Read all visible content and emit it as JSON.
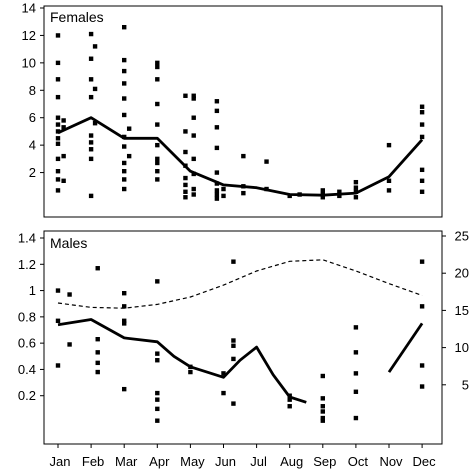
{
  "chart_data": [
    {
      "type": "line",
      "title": "Females",
      "months": [
        "Jan",
        "Feb",
        "Mar",
        "Apr",
        "May",
        "Jun",
        "Jul",
        "Aug",
        "Sep",
        "Oct",
        "Nov",
        "Dec"
      ],
      "ylim": [
        0,
        14
      ],
      "yticks": [
        "2",
        "4",
        "6",
        "8",
        "10",
        "12",
        "14"
      ],
      "series": [
        {
          "values": [
            4.9,
            6.0,
            4.5,
            4.5,
            2.1,
            1.1,
            0.9,
            0.4,
            0.35,
            0.5,
            1.7,
            4.4
          ]
        }
      ],
      "points": [
        {
          "m": 0,
          "y": 12.0
        },
        {
          "m": 0,
          "y": 10.0
        },
        {
          "m": 0,
          "y": 8.8
        },
        {
          "m": 0,
          "y": 7.5
        },
        {
          "m": 0,
          "y": 6.0
        },
        {
          "m": 0,
          "y": 5.5
        },
        {
          "m": 0,
          "y": 5.0
        },
        {
          "m": 0,
          "y": 4.5
        },
        {
          "m": 0,
          "y": 4.1
        },
        {
          "m": 0,
          "y": 3.0
        },
        {
          "m": 0,
          "y": 2.1
        },
        {
          "m": 0,
          "y": 1.5
        },
        {
          "m": 0,
          "y": 0.7
        },
        {
          "m": 0.17,
          "y": 5.8
        },
        {
          "m": 0.17,
          "y": 5.3
        },
        {
          "m": 0.17,
          "y": 3.2
        },
        {
          "m": 0.17,
          "y": 1.4
        },
        {
          "m": 1,
          "y": 12.1
        },
        {
          "m": 1,
          "y": 10.3
        },
        {
          "m": 1,
          "y": 8.8
        },
        {
          "m": 1,
          "y": 7.5
        },
        {
          "m": 1,
          "y": 4.7
        },
        {
          "m": 1,
          "y": 4.2
        },
        {
          "m": 1,
          "y": 3.7
        },
        {
          "m": 1,
          "y": 3.0
        },
        {
          "m": 1,
          "y": 0.3
        },
        {
          "m": 1.12,
          "y": 11.2
        },
        {
          "m": 1.12,
          "y": 8.1
        },
        {
          "m": 1.12,
          "y": 5.6
        },
        {
          "m": 2,
          "y": 12.6
        },
        {
          "m": 2,
          "y": 10.2
        },
        {
          "m": 2,
          "y": 9.4
        },
        {
          "m": 2,
          "y": 8.5
        },
        {
          "m": 2,
          "y": 7.4
        },
        {
          "m": 2,
          "y": 6.2
        },
        {
          "m": 2,
          "y": 4.6
        },
        {
          "m": 2,
          "y": 3.9
        },
        {
          "m": 2,
          "y": 2.7
        },
        {
          "m": 2,
          "y": 2.1
        },
        {
          "m": 2,
          "y": 1.5
        },
        {
          "m": 2,
          "y": 0.8
        },
        {
          "m": 2.15,
          "y": 5.2
        },
        {
          "m": 2.15,
          "y": 3.2
        },
        {
          "m": 3,
          "y": 10.0
        },
        {
          "m": 3,
          "y": 9.7
        },
        {
          "m": 3,
          "y": 8.8
        },
        {
          "m": 3,
          "y": 7.0
        },
        {
          "m": 3,
          "y": 5.5
        },
        {
          "m": 3,
          "y": 4.0
        },
        {
          "m": 3,
          "y": 3.0
        },
        {
          "m": 3,
          "y": 2.7
        },
        {
          "m": 3,
          "y": 2.1
        },
        {
          "m": 3,
          "y": 1.5
        },
        {
          "m": 3.85,
          "y": 7.6
        },
        {
          "m": 3.85,
          "y": 5.0
        },
        {
          "m": 3.85,
          "y": 3.5
        },
        {
          "m": 3.85,
          "y": 2.5
        },
        {
          "m": 3.85,
          "y": 1.6
        },
        {
          "m": 3.85,
          "y": 1.1
        },
        {
          "m": 3.85,
          "y": 0.6
        },
        {
          "m": 3.85,
          "y": 0.2
        },
        {
          "m": 4.1,
          "y": 7.6
        },
        {
          "m": 4.1,
          "y": 7.4
        },
        {
          "m": 4.1,
          "y": 6.0
        },
        {
          "m": 4.1,
          "y": 4.7
        },
        {
          "m": 4.1,
          "y": 3.0
        },
        {
          "m": 4.1,
          "y": 1.9
        },
        {
          "m": 4.1,
          "y": 0.8
        },
        {
          "m": 4.1,
          "y": 0.4
        },
        {
          "m": 4.8,
          "y": 7.2
        },
        {
          "m": 4.8,
          "y": 6.5
        },
        {
          "m": 4.8,
          "y": 5.3
        },
        {
          "m": 4.8,
          "y": 3.8
        },
        {
          "m": 4.8,
          "y": 2.0
        },
        {
          "m": 4.8,
          "y": 1.2
        },
        {
          "m": 4.8,
          "y": 0.7
        },
        {
          "m": 4.8,
          "y": 0.4
        },
        {
          "m": 4.8,
          "y": 0.1
        },
        {
          "m": 5.0,
          "y": 0.8
        },
        {
          "m": 5.0,
          "y": 0.3
        },
        {
          "m": 5.6,
          "y": 3.2
        },
        {
          "m": 5.6,
          "y": 1.0
        },
        {
          "m": 5.6,
          "y": 0.5
        },
        {
          "m": 6.3,
          "y": 2.8
        },
        {
          "m": 6.3,
          "y": 0.8
        },
        {
          "m": 7.0,
          "y": 0.3
        },
        {
          "m": 7.3,
          "y": 0.4
        },
        {
          "m": 8.0,
          "y": 0.7
        },
        {
          "m": 8.0,
          "y": 0.4
        },
        {
          "m": 8.0,
          "y": 0.2
        },
        {
          "m": 8.5,
          "y": 0.6
        },
        {
          "m": 8.5,
          "y": 0.3
        },
        {
          "m": 9.0,
          "y": 1.3
        },
        {
          "m": 9.0,
          "y": 0.9
        },
        {
          "m": 9.0,
          "y": 0.6
        },
        {
          "m": 9.0,
          "y": 0.2
        },
        {
          "m": 10.0,
          "y": 4.0
        },
        {
          "m": 10.0,
          "y": 1.4
        },
        {
          "m": 10.0,
          "y": 0.7
        },
        {
          "m": 11.0,
          "y": 6.8
        },
        {
          "m": 11.0,
          "y": 6.4
        },
        {
          "m": 11.0,
          "y": 5.5
        },
        {
          "m": 11.0,
          "y": 4.6
        },
        {
          "m": 11.0,
          "y": 2.2
        },
        {
          "m": 11.0,
          "y": 1.4
        },
        {
          "m": 11.0,
          "y": 0.6
        }
      ]
    },
    {
      "type": "line",
      "title": "Males",
      "months": [
        "Jan",
        "Feb",
        "Mar",
        "Apr",
        "May",
        "Jun",
        "Jul",
        "Aug",
        "Sep",
        "Oct",
        "Nov",
        "Dec"
      ],
      "ylim": [
        0,
        1.4
      ],
      "yticks": [
        "0.2",
        "0.4",
        "0.6",
        "0.8",
        "1",
        "1.2",
        "1.4"
      ],
      "y2lim": [
        0,
        25
      ],
      "y2ticks": [
        "5",
        "10",
        "15",
        "20",
        "25"
      ],
      "series": [
        {
          "axis": "left",
          "style": "solid",
          "segments": [
            {
              "x": [
                0,
                1,
                2,
                3,
                3.5,
                4.0,
                4.5,
                5.0,
                5.5,
                6.0,
                6.5,
                7.0,
                7.5
              ],
              "y": [
                0.74,
                0.78,
                0.64,
                0.61,
                0.5,
                0.42,
                0.38,
                0.34,
                0.47,
                0.57,
                0.36,
                0.19,
                0.15
              ]
            },
            {
              "x": [
                10.0,
                11.0
              ],
              "y": [
                0.38,
                0.75
              ]
            }
          ]
        },
        {
          "axis": "right",
          "style": "dashed",
          "x": [
            0,
            1,
            2,
            3,
            4,
            5,
            6,
            7,
            8,
            9,
            10,
            11
          ],
          "y": [
            16.0,
            15.4,
            15.3,
            15.8,
            16.8,
            18.4,
            20.3,
            21.6,
            21.8,
            20.3,
            18.6,
            17.0
          ]
        }
      ],
      "points": [
        {
          "m": 0,
          "y": 1.0
        },
        {
          "m": 0,
          "y": 0.77
        },
        {
          "m": 0,
          "y": 0.43
        },
        {
          "m": 0.35,
          "y": 0.97
        },
        {
          "m": 0.35,
          "y": 0.59
        },
        {
          "m": 1.2,
          "y": 1.17
        },
        {
          "m": 1.2,
          "y": 0.63
        },
        {
          "m": 1.2,
          "y": 0.53
        },
        {
          "m": 1.2,
          "y": 0.45
        },
        {
          "m": 1.2,
          "y": 0.38
        },
        {
          "m": 2,
          "y": 0.98
        },
        {
          "m": 2,
          "y": 0.88
        },
        {
          "m": 2,
          "y": 0.77
        },
        {
          "m": 2,
          "y": 0.75
        },
        {
          "m": 2,
          "y": 0.25
        },
        {
          "m": 3,
          "y": 1.07
        },
        {
          "m": 3,
          "y": 0.52
        },
        {
          "m": 3,
          "y": 0.47
        },
        {
          "m": 3,
          "y": 0.22
        },
        {
          "m": 3,
          "y": 0.17
        },
        {
          "m": 3,
          "y": 0.1
        },
        {
          "m": 3,
          "y": 0.01
        },
        {
          "m": 4,
          "y": 0.42
        },
        {
          "m": 4,
          "y": 0.38
        },
        {
          "m": 5,
          "y": 0.37
        },
        {
          "m": 5,
          "y": 0.22
        },
        {
          "m": 5.3,
          "y": 1.22
        },
        {
          "m": 5.3,
          "y": 0.62
        },
        {
          "m": 5.3,
          "y": 0.58
        },
        {
          "m": 5.3,
          "y": 0.48
        },
        {
          "m": 5.3,
          "y": 0.14
        },
        {
          "m": 7.0,
          "y": 0.2
        },
        {
          "m": 7.0,
          "y": 0.17
        },
        {
          "m": 7.0,
          "y": 0.12
        },
        {
          "m": 8.0,
          "y": 0.35
        },
        {
          "m": 8.0,
          "y": 0.18
        },
        {
          "m": 8.0,
          "y": 0.12
        },
        {
          "m": 8.0,
          "y": 0.08
        },
        {
          "m": 8.0,
          "y": 0.03
        },
        {
          "m": 8.0,
          "y": 0.01
        },
        {
          "m": 9.0,
          "y": 0.72
        },
        {
          "m": 9.0,
          "y": 0.53
        },
        {
          "m": 9.0,
          "y": 0.37
        },
        {
          "m": 9.0,
          "y": 0.23
        },
        {
          "m": 9.0,
          "y": 0.03
        },
        {
          "m": 11.0,
          "y": 1.22
        },
        {
          "m": 11.0,
          "y": 0.88
        },
        {
          "m": 11.0,
          "y": 0.43
        },
        {
          "m": 11.0,
          "y": 0.27
        }
      ]
    }
  ]
}
